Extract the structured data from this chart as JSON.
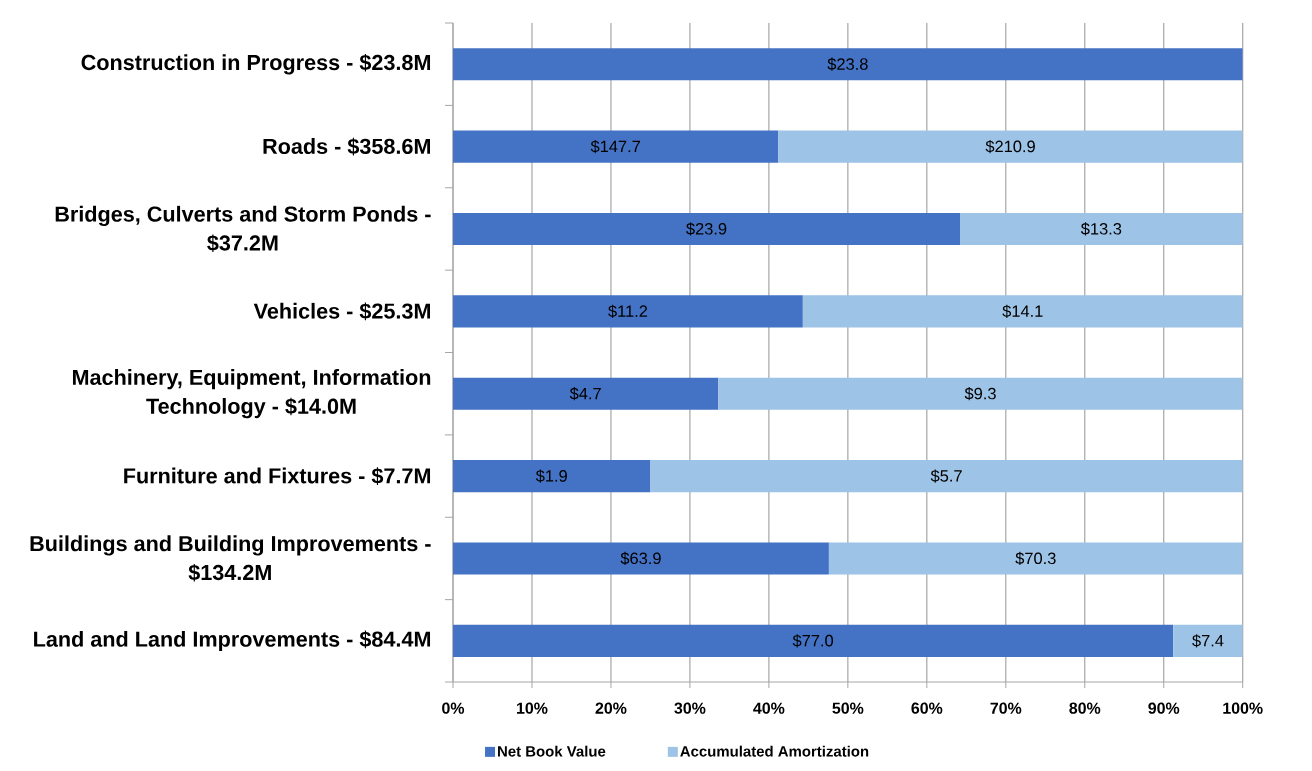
{
  "chart_data": {
    "type": "bar",
    "orientation": "horizontal",
    "stacked": true,
    "categories": [
      "Construction in Progress - $23.8M",
      "Roads - $358.6M",
      "Bridges, Culverts and Storm Ponds - $37.2M",
      "Vehicles - $25.3M",
      "Machinery, Equipment, Information Technology - $14.0M",
      "Furniture and Fixtures - $7.7M",
      "Buildings and Building Improvements - $134.2M",
      "Land and Land Improvements - $84.4M"
    ],
    "series": [
      {
        "name": "Net Book Value",
        "color": "#4472c4",
        "values": [
          100,
          41.2,
          64.2,
          44.3,
          33.6,
          25.0,
          47.6,
          91.2
        ]
      },
      {
        "name": "Accumulated Amortization",
        "color": "#9dc3e6",
        "values": [
          null,
          58.8,
          35.8,
          55.7,
          66.4,
          75.0,
          52.4,
          8.8
        ]
      }
    ],
    "xlim": [
      0,
      100
    ],
    "xticks": [
      {
        "value": 0,
        "label": "0%"
      },
      {
        "value": 10,
        "label": "10%"
      },
      {
        "value": 20,
        "label": "20%"
      },
      {
        "value": 30,
        "label": "30%"
      },
      {
        "value": 40,
        "label": "40%"
      },
      {
        "value": 50,
        "label": "50%"
      },
      {
        "value": 60,
        "label": "60%"
      },
      {
        "value": 70,
        "label": "70%"
      },
      {
        "value": 80,
        "label": "80%"
      },
      {
        "value": 90,
        "label": "90%"
      },
      {
        "value": 100,
        "label": "100%"
      }
    ],
    "annotations": [
      "$23.8",
      "$147.7",
      "$210.9",
      "$23.9",
      "$13.3",
      "$11.2",
      "$14.1",
      "$4.7",
      "$9.3",
      "$1.9",
      "$5.7",
      "$63.9",
      "$70.3",
      "$77.0",
      "$7.4"
    ],
    "grid": "x",
    "legend": "bottom"
  }
}
